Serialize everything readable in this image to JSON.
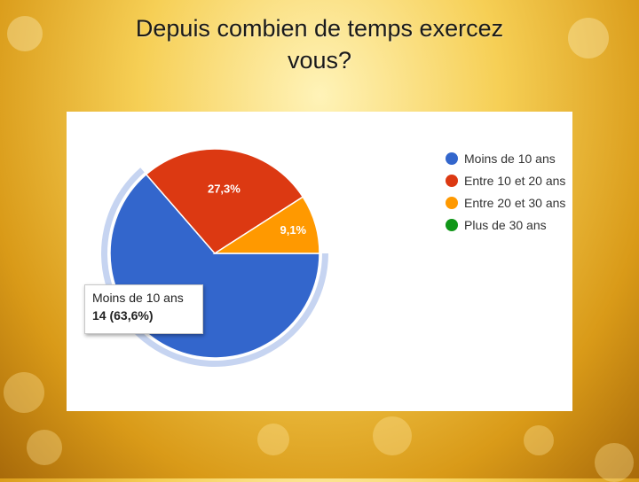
{
  "slide": {
    "title_line1": "Depuis combien de temps exercez",
    "title_line2": "vous?"
  },
  "chart_data": {
    "type": "pie",
    "categories": [
      "Moins de 10 ans",
      "Entre 10 et 20 ans",
      "Entre 20 et 30 ans",
      "Plus de 30 ans"
    ],
    "values": [
      14,
      6,
      2,
      0
    ],
    "percent_labels": [
      "63,6%",
      "27,3%",
      "9,1%",
      ""
    ],
    "colors": [
      "#3366cc",
      "#dc3912",
      "#ff9900",
      "#109618"
    ],
    "legend_position": "right",
    "highlighted_slice": 0,
    "tooltip": {
      "label": "Moins de 10 ans",
      "value": "14 (63,6%)"
    }
  }
}
